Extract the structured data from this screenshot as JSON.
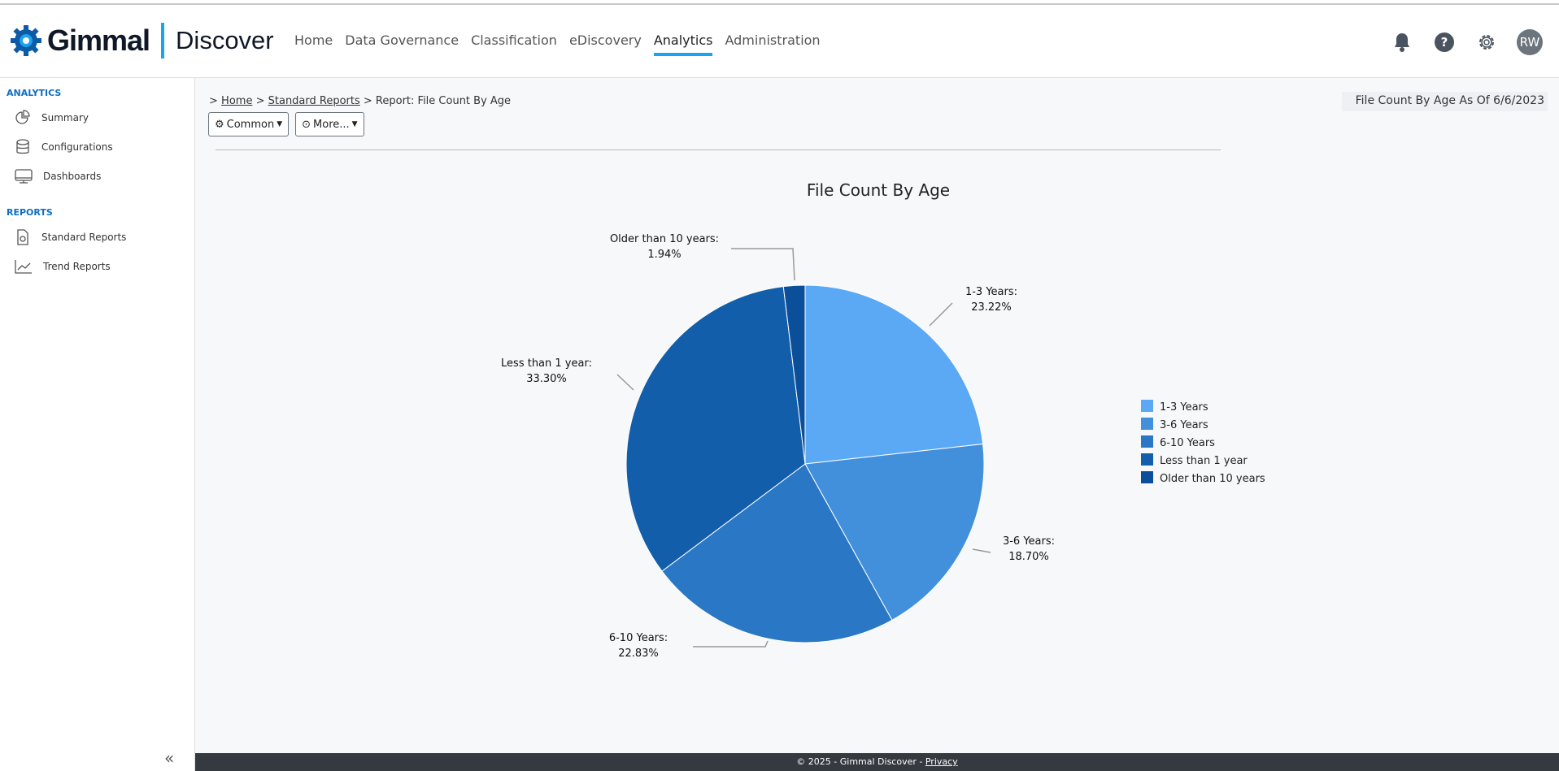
{
  "header": {
    "brand": "Gimmal",
    "product": "Discover",
    "nav": [
      {
        "label": "Home"
      },
      {
        "label": "Data Governance"
      },
      {
        "label": "Classification"
      },
      {
        "label": "eDiscovery"
      },
      {
        "label": "Analytics",
        "active": true
      },
      {
        "label": "Administration"
      }
    ],
    "avatar": "RW",
    "icons": [
      "bell-icon",
      "help-icon",
      "gear-icon"
    ]
  },
  "sidebar": {
    "sections": [
      {
        "title": "ANALYTICS",
        "items": [
          "Summary",
          "Configurations",
          "Dashboards"
        ]
      },
      {
        "title": "REPORTS",
        "items": [
          "Standard Reports",
          "Trend Reports"
        ]
      }
    ]
  },
  "breadcrumb": {
    "prefix": ">",
    "home": "Home",
    "sep": ">",
    "standard": "Standard Reports",
    "current": "> Report: File Count By Age"
  },
  "toolbar": {
    "common": "Common",
    "more": "More..."
  },
  "as_of": "File Count By Age As Of 6/6/2023",
  "chart_data": {
    "type": "pie",
    "title": "File Count By Age",
    "legend_position": "right",
    "slices": [
      {
        "label": "1-3 Years",
        "value": 23.22,
        "display": "23.22%",
        "color": "#5ba8f5"
      },
      {
        "label": "3-6 Years",
        "value": 18.7,
        "display": "18.70%",
        "color": "#4290db"
      },
      {
        "label": "6-10 Years",
        "value": 22.83,
        "display": "22.83%",
        "color": "#2a78c5"
      },
      {
        "label": "Less than 1 year",
        "value": 33.3,
        "display": "33.30%",
        "color": "#135eab"
      },
      {
        "label": "Older than 10 years",
        "value": 1.94,
        "display": "1.94%",
        "color": "#0b4f9a"
      }
    ]
  },
  "footer": {
    "text": "© 2025 - Gimmal Discover - ",
    "privacy": "Privacy"
  }
}
